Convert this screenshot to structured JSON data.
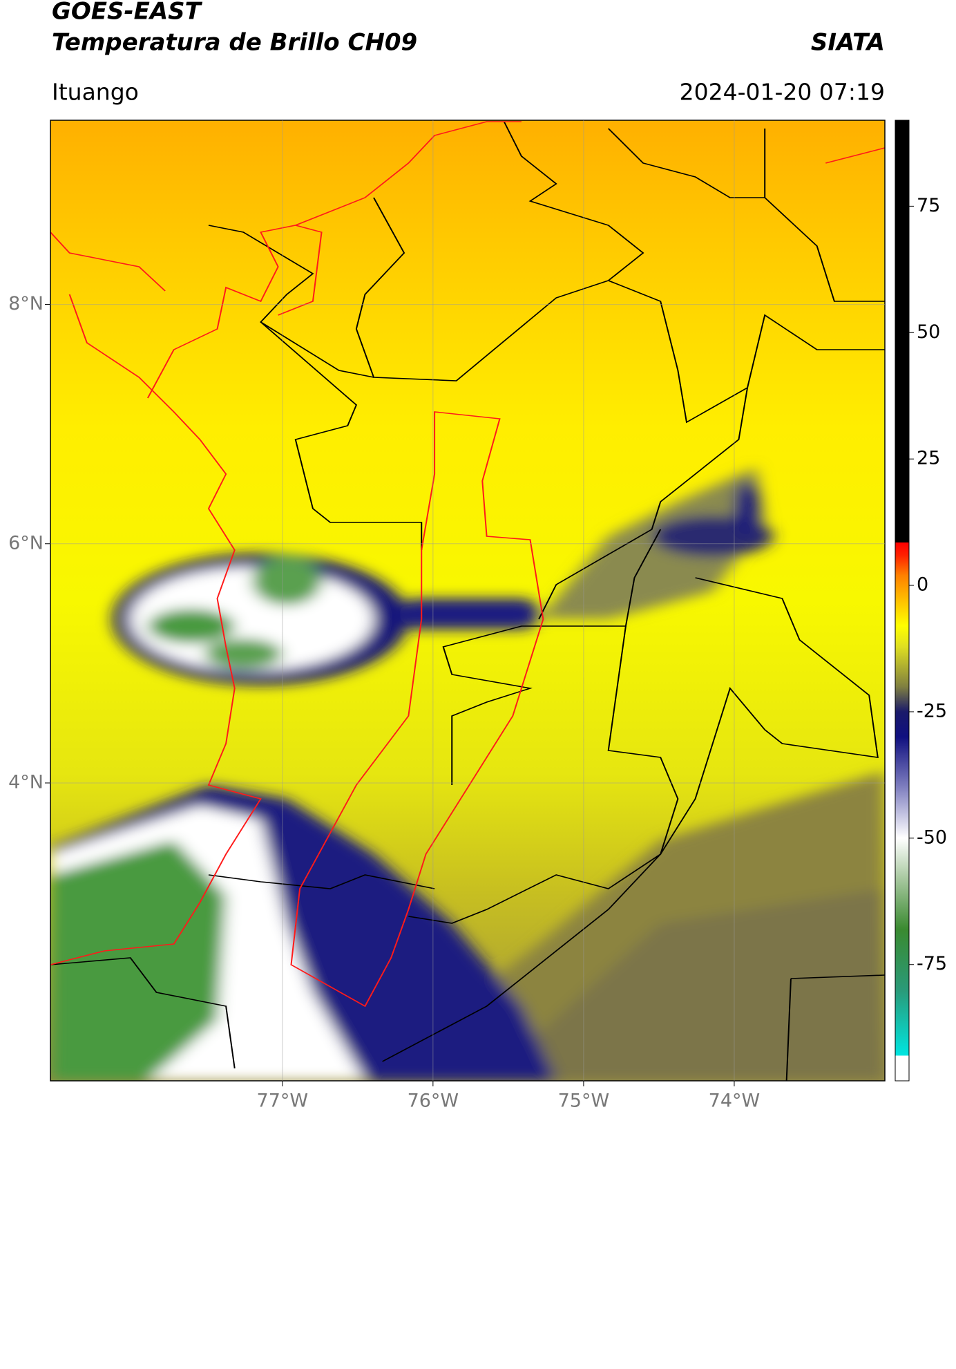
{
  "header": {
    "title_line1": "GOES-EAST",
    "title_line2": "Temperatura de Brillo CH09",
    "source": "SIATA",
    "region": "Ituango",
    "datetime": "2024-01-20 07:19"
  },
  "map": {
    "xlim": [
      -78.54,
      -73.0
    ],
    "ylim": [
      1.51,
      9.54
    ],
    "xticks": [
      {
        "value": -77,
        "label": "77°W"
      },
      {
        "value": -76,
        "label": "76°W"
      },
      {
        "value": -75,
        "label": "75°W"
      },
      {
        "value": -74,
        "label": "74°W"
      }
    ],
    "yticks": [
      {
        "value": 8,
        "label": "8°N"
      },
      {
        "value": 6,
        "label": "6°N"
      },
      {
        "value": 4,
        "label": "4°N"
      }
    ],
    "grid": true
  },
  "colorbar": {
    "lim": [
      -98,
      92
    ],
    "ticks": [
      75,
      50,
      25,
      0,
      -25,
      -50,
      -75
    ],
    "stops": [
      {
        "value": -98,
        "color": "#ffffff"
      },
      {
        "value": -93,
        "color": "#ffffff"
      },
      {
        "value": -93,
        "color": "#00e5e0"
      },
      {
        "value": -80,
        "color": "#2a9a78"
      },
      {
        "value": -68,
        "color": "#3a8a30"
      },
      {
        "value": -58,
        "color": "#a8c8a0"
      },
      {
        "value": -50,
        "color": "#ffffff"
      },
      {
        "value": -40,
        "color": "#8080c0"
      },
      {
        "value": -30,
        "color": "#101080"
      },
      {
        "value": -25,
        "color": "#1a1a6a"
      },
      {
        "value": -20,
        "color": "#808040"
      },
      {
        "value": -12,
        "color": "#e0e020"
      },
      {
        "value": -8,
        "color": "#ffff00"
      },
      {
        "value": -3,
        "color": "#ffc000"
      },
      {
        "value": 2,
        "color": "#ff8000"
      },
      {
        "value": 6,
        "color": "#ff2000"
      },
      {
        "value": 8.5,
        "color": "#ff0000"
      },
      {
        "value": 8.5,
        "color": "#000000"
      },
      {
        "value": 92,
        "color": "#000000"
      }
    ]
  }
}
